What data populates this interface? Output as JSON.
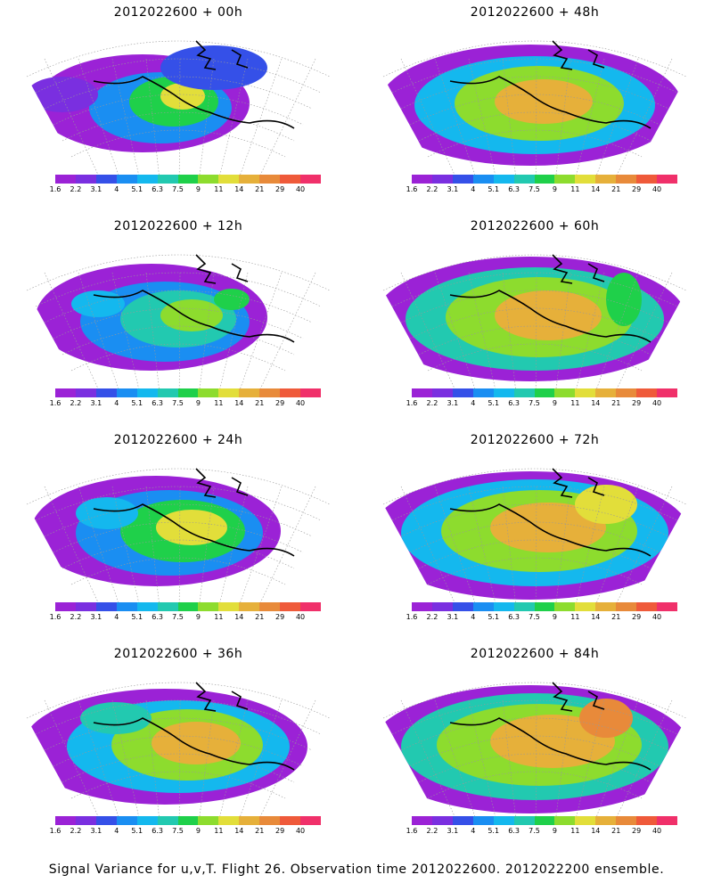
{
  "panels": [
    {
      "title": "2012022600  +  00h",
      "field": "p00"
    },
    {
      "title": "2012022600  +  48h",
      "field": "p48"
    },
    {
      "title": "2012022600  +  12h",
      "field": "p12"
    },
    {
      "title": "2012022600  +  60h",
      "field": "p60"
    },
    {
      "title": "2012022600  +  24h",
      "field": "p24"
    },
    {
      "title": "2012022600  +  72h",
      "field": "p72"
    },
    {
      "title": "2012022600  +  36h",
      "field": "p36"
    },
    {
      "title": "2012022600  +  84h",
      "field": "p84"
    }
  ],
  "colorbar": {
    "colors": [
      "#9b22d6",
      "#7a2fe0",
      "#3550e8",
      "#1a8ef2",
      "#14b8ee",
      "#22c9b0",
      "#1fd04a",
      "#8ddc2e",
      "#e2de3a",
      "#e6b03a",
      "#e88a3a",
      "#ef5a3a",
      "#f0306a"
    ],
    "labels": [
      "1.6",
      "2.2",
      "3.1",
      "4",
      "5.1",
      "6.3",
      "7.5",
      "9",
      "11",
      "14",
      "21",
      "29",
      "40"
    ]
  },
  "caption": "Signal Variance for u,v,T. Flight 26. Observation time 2012022600. 2012022200 ensemble."
}
